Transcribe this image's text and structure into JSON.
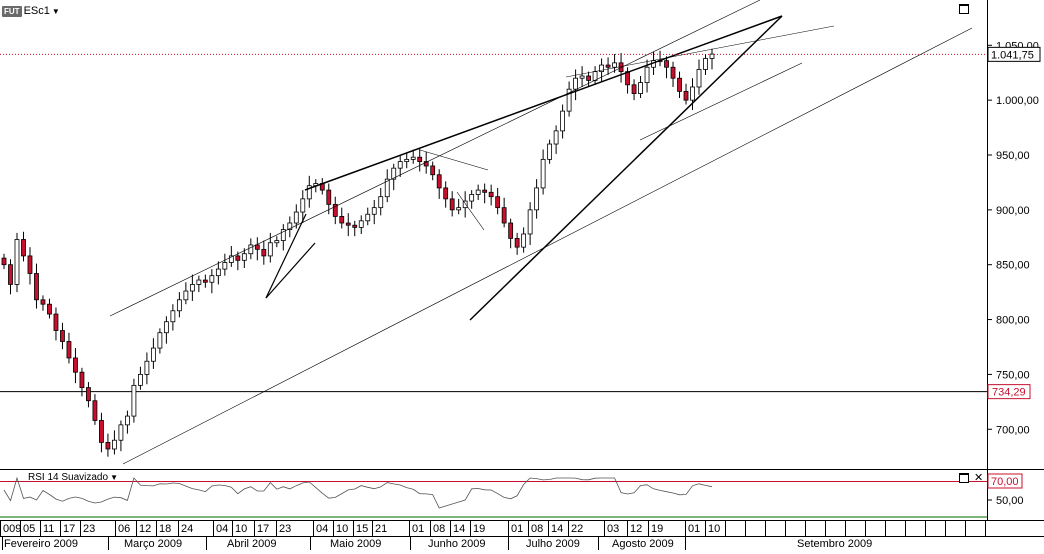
{
  "toolbar": {
    "badge": "FUT",
    "symbol": "ESc1"
  },
  "last_price_label": "1.041,75",
  "hline_label": "734,29",
  "rsi": {
    "title": "RSI 14 Suavizado",
    "level_label": "70,00",
    "mid_label": "50,00"
  },
  "colors": {
    "up": "#ffffff",
    "down": "#c8102e",
    "wick": "#000000",
    "last_price": "#c8102e",
    "rsi_level": "#c8102e",
    "rsi_floor": "#2e8b2e"
  },
  "chart_data": {
    "type": "candlestick",
    "instrument": "ESc1",
    "y_ticks": [
      "1.050,00",
      "1.000,00",
      "950,00",
      "900,00",
      "850,00",
      "800,00",
      "750,00",
      "700,00"
    ],
    "y_tick_values": [
      1050,
      1000,
      950,
      900,
      850,
      800,
      750,
      700
    ],
    "ylim": [
      668,
      1080
    ],
    "last_price": 1041.75,
    "horizontal_line": 734.29,
    "day_labels": [
      "009",
      "05",
      "11",
      "17",
      "23",
      "06",
      "12",
      "18",
      "24",
      "04",
      "10",
      "17",
      "23",
      "04",
      "10",
      "15",
      "21",
      "01",
      "08",
      "14",
      "19",
      "01",
      "08",
      "14",
      "22",
      "03",
      "12",
      "19",
      "01",
      "10"
    ],
    "months": [
      "Fevereiro 2009",
      "Março 2009",
      "Abril 2009",
      "Maio 2009",
      "Junho 2009",
      "Julho 2009",
      "Agosto 2009",
      "Setembro 2009"
    ],
    "close_path": [
      850,
      832,
      873,
      858,
      842,
      818,
      814,
      805,
      790,
      780,
      765,
      752,
      738,
      726,
      708,
      688,
      682,
      690,
      704,
      712,
      740,
      750,
      762,
      774,
      788,
      798,
      808,
      818,
      826,
      832,
      836,
      834,
      840,
      846,
      852,
      858,
      854,
      860,
      868,
      864,
      858,
      870,
      872,
      882,
      888,
      898,
      910,
      922,
      924,
      918,
      905,
      894,
      888,
      886,
      884,
      890,
      896,
      902,
      912,
      928,
      938,
      944,
      946,
      948,
      944,
      940,
      932,
      920,
      910,
      900,
      902,
      908,
      914,
      918,
      916,
      912,
      902,
      888,
      874,
      866,
      878,
      900,
      920,
      946,
      960,
      972,
      990,
      1010,
      1020,
      1022,
      1018,
      1026,
      1032,
      1030,
      1034,
      1026,
      1014,
      1006,
      1016,
      1030,
      1036,
      1036,
      1030,
      1020,
      1008,
      1000,
      1012,
      1028,
      1038,
      1042
    ],
    "rsi_label_70": 70,
    "rsi_label_50": 50
  }
}
